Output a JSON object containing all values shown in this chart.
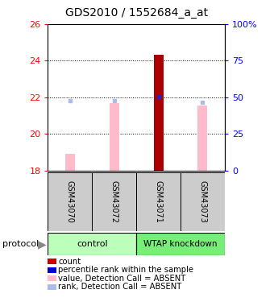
{
  "title": "GDS2010 / 1552684_a_at",
  "samples": [
    "GSM43070",
    "GSM43072",
    "GSM43071",
    "GSM43073"
  ],
  "ylim_left": [
    18,
    26
  ],
  "ylim_right": [
    0,
    100
  ],
  "yticks_left": [
    18,
    20,
    22,
    24,
    26
  ],
  "yticks_right": [
    0,
    25,
    50,
    75,
    100
  ],
  "bar_values": [
    18.94,
    21.67,
    24.32,
    21.56
  ],
  "bar_base": 18,
  "rank_values": [
    21.83,
    21.84,
    22.05,
    21.73
  ],
  "rank_dot_colors": [
    "#aabbee",
    "#aabbee",
    "#2222cc",
    "#aabbee"
  ],
  "bar_colors": [
    "#ffbbcc",
    "#ffbbcc",
    "#aa0000",
    "#ffbbcc"
  ],
  "dotted_lines": [
    20,
    22,
    24
  ],
  "group_color_control": "#bbffbb",
  "group_color_wtap": "#77ee77",
  "sample_label_color": "#cccccc",
  "legend_items": [
    {
      "color": "#cc0000",
      "label": "count"
    },
    {
      "color": "#0000cc",
      "label": "percentile rank within the sample"
    },
    {
      "color": "#ffbbcc",
      "label": "value, Detection Call = ABSENT"
    },
    {
      "color": "#aabbee",
      "label": "rank, Detection Call = ABSENT"
    }
  ],
  "bg_color": "#ffffff"
}
